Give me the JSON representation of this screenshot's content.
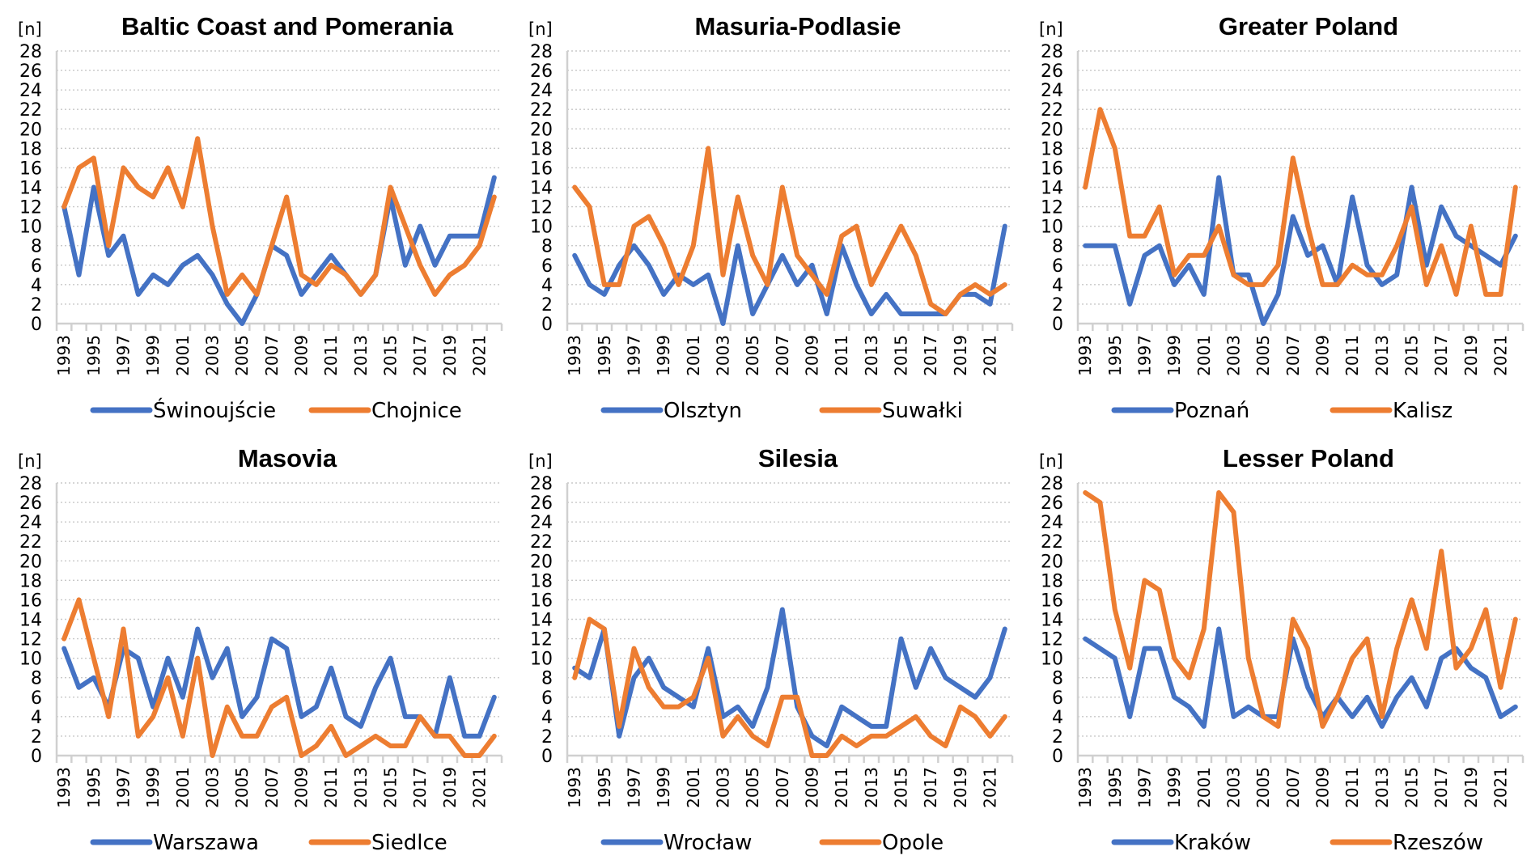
{
  "chart_data": [
    {
      "type": "line",
      "title": "Baltic Coast and Pomerania",
      "ylabel": "[n]",
      "xlabel": "",
      "ylim": [
        0,
        28
      ],
      "yticks": [
        "0",
        "2",
        "4",
        "6",
        "8",
        "10",
        "12",
        "14",
        "16",
        "18",
        "20",
        "22",
        "24",
        "26",
        "28"
      ],
      "x": [
        1993,
        1994,
        1995,
        1996,
        1997,
        1998,
        1999,
        2000,
        2001,
        2002,
        2003,
        2004,
        2005,
        2006,
        2007,
        2008,
        2009,
        2010,
        2011,
        2012,
        2013,
        2014,
        2015,
        2016,
        2017,
        2018,
        2019,
        2020,
        2021,
        2022
      ],
      "xtick_labels": [
        "1993",
        "1995",
        "1997",
        "1999",
        "2001",
        "2003",
        "2005",
        "2007",
        "2009",
        "2011",
        "2013",
        "2015",
        "2017",
        "2019",
        "2021"
      ],
      "grid": true,
      "legend": "bottom",
      "series": [
        {
          "name": "Świnoujście",
          "color": "#4472c4",
          "values": [
            12,
            5,
            14,
            7,
            9,
            3,
            5,
            4,
            6,
            7,
            5,
            2,
            0,
            3,
            8,
            7,
            3,
            5,
            7,
            5,
            3,
            5,
            13,
            6,
            10,
            6,
            9,
            9,
            9,
            15
          ]
        },
        {
          "name": "Chojnice",
          "color": "#ed7d31",
          "values": [
            12,
            16,
            17,
            8,
            16,
            14,
            13,
            16,
            12,
            19,
            10,
            3,
            5,
            3,
            8,
            13,
            5,
            4,
            6,
            5,
            3,
            5,
            14,
            10,
            6,
            3,
            5,
            6,
            8,
            13
          ]
        }
      ]
    },
    {
      "type": "line",
      "title": "Masuria-Podlasie",
      "ylabel": "[n]",
      "xlabel": "",
      "ylim": [
        0,
        28
      ],
      "yticks": [
        "0",
        "2",
        "4",
        "6",
        "8",
        "10",
        "12",
        "14",
        "16",
        "18",
        "20",
        "22",
        "24",
        "26",
        "28"
      ],
      "x": [
        1993,
        1994,
        1995,
        1996,
        1997,
        1998,
        1999,
        2000,
        2001,
        2002,
        2003,
        2004,
        2005,
        2006,
        2007,
        2008,
        2009,
        2010,
        2011,
        2012,
        2013,
        2014,
        2015,
        2016,
        2017,
        2018,
        2019,
        2020,
        2021,
        2022
      ],
      "xtick_labels": [
        "1993",
        "1995",
        "1997",
        "1999",
        "2001",
        "2003",
        "2005",
        "2007",
        "2009",
        "2011",
        "2013",
        "2015",
        "2017",
        "2019",
        "2021"
      ],
      "grid": true,
      "legend": "bottom",
      "series": [
        {
          "name": "Olsztyn",
          "color": "#4472c4",
          "values": [
            7,
            4,
            3,
            6,
            8,
            6,
            3,
            5,
            4,
            5,
            0,
            8,
            1,
            4,
            7,
            4,
            6,
            1,
            8,
            4,
            1,
            3,
            1,
            1,
            1,
            1,
            3,
            3,
            2,
            10
          ]
        },
        {
          "name": "Suwałki",
          "color": "#ed7d31",
          "values": [
            14,
            12,
            4,
            4,
            10,
            11,
            8,
            4,
            8,
            18,
            5,
            13,
            7,
            4,
            14,
            7,
            5,
            3,
            9,
            10,
            4,
            7,
            10,
            7,
            2,
            1,
            3,
            4,
            3,
            4
          ]
        }
      ]
    },
    {
      "type": "line",
      "title": "Greater Poland",
      "ylabel": "[n]",
      "xlabel": "",
      "ylim": [
        0,
        28
      ],
      "yticks": [
        "0",
        "2",
        "4",
        "6",
        "8",
        "10",
        "12",
        "14",
        "16",
        "18",
        "20",
        "22",
        "24",
        "26",
        "28"
      ],
      "x": [
        1993,
        1994,
        1995,
        1996,
        1997,
        1998,
        1999,
        2000,
        2001,
        2002,
        2003,
        2004,
        2005,
        2006,
        2007,
        2008,
        2009,
        2010,
        2011,
        2012,
        2013,
        2014,
        2015,
        2016,
        2017,
        2018,
        2019,
        2020,
        2021,
        2022
      ],
      "xtick_labels": [
        "1993",
        "1995",
        "1997",
        "1999",
        "2001",
        "2003",
        "2005",
        "2007",
        "2009",
        "2011",
        "2013",
        "2015",
        "2017",
        "2019",
        "2021"
      ],
      "grid": true,
      "legend": "bottom",
      "series": [
        {
          "name": "Poznań",
          "color": "#4472c4",
          "values": [
            8,
            8,
            8,
            2,
            7,
            8,
            4,
            6,
            3,
            15,
            5,
            5,
            0,
            3,
            11,
            7,
            8,
            4,
            13,
            6,
            4,
            5,
            14,
            6,
            12,
            9,
            8,
            7,
            6,
            9
          ]
        },
        {
          "name": "Kalisz",
          "color": "#ed7d31",
          "values": [
            14,
            22,
            18,
            9,
            9,
            12,
            5,
            7,
            7,
            10,
            5,
            4,
            4,
            6,
            17,
            10,
            4,
            4,
            6,
            5,
            5,
            8,
            12,
            4,
            8,
            3,
            10,
            3,
            3,
            14
          ]
        }
      ]
    },
    {
      "type": "line",
      "title": "Masovia",
      "ylabel": "[n]",
      "xlabel": "",
      "ylim": [
        0,
        28
      ],
      "yticks": [
        "0",
        "2",
        "4",
        "6",
        "8",
        "10",
        "12",
        "14",
        "16",
        "18",
        "20",
        "22",
        "24",
        "26",
        "28"
      ],
      "x": [
        1993,
        1994,
        1995,
        1996,
        1997,
        1998,
        1999,
        2000,
        2001,
        2002,
        2003,
        2004,
        2005,
        2006,
        2007,
        2008,
        2009,
        2010,
        2011,
        2012,
        2013,
        2014,
        2015,
        2016,
        2017,
        2018,
        2019,
        2020,
        2021,
        2022
      ],
      "xtick_labels": [
        "1993",
        "1995",
        "1997",
        "1999",
        "2001",
        "2003",
        "2005",
        "2007",
        "2009",
        "2011",
        "2013",
        "2015",
        "2017",
        "2019",
        "2021"
      ],
      "grid": true,
      "legend": "bottom",
      "series": [
        {
          "name": "Warszawa",
          "color": "#4472c4",
          "values": [
            11,
            7,
            8,
            5,
            11,
            10,
            5,
            10,
            6,
            13,
            8,
            11,
            4,
            6,
            12,
            11,
            4,
            5,
            9,
            4,
            3,
            7,
            10,
            4,
            4,
            2,
            8,
            2,
            2,
            6
          ]
        },
        {
          "name": "Siedlce",
          "color": "#ed7d31",
          "values": [
            12,
            16,
            10,
            4,
            13,
            2,
            4,
            8,
            2,
            10,
            0,
            5,
            2,
            2,
            5,
            6,
            0,
            1,
            3,
            0,
            1,
            2,
            1,
            1,
            4,
            2,
            2,
            0,
            0,
            2
          ]
        }
      ]
    },
    {
      "type": "line",
      "title": "Silesia",
      "ylabel": "[n]",
      "xlabel": "",
      "ylim": [
        0,
        28
      ],
      "yticks": [
        "0",
        "2",
        "4",
        "6",
        "8",
        "10",
        "12",
        "14",
        "16",
        "18",
        "20",
        "22",
        "24",
        "26",
        "28"
      ],
      "x": [
        1993,
        1994,
        1995,
        1996,
        1997,
        1998,
        1999,
        2000,
        2001,
        2002,
        2003,
        2004,
        2005,
        2006,
        2007,
        2008,
        2009,
        2010,
        2011,
        2012,
        2013,
        2014,
        2015,
        2016,
        2017,
        2018,
        2019,
        2020,
        2021,
        2022
      ],
      "xtick_labels": [
        "1993",
        "1995",
        "1997",
        "1999",
        "2001",
        "2003",
        "2005",
        "2007",
        "2009",
        "2011",
        "2013",
        "2015",
        "2017",
        "2019",
        "2021"
      ],
      "grid": true,
      "legend": "bottom",
      "series": [
        {
          "name": "Wrocław",
          "color": "#4472c4",
          "values": [
            9,
            8,
            13,
            2,
            8,
            10,
            7,
            6,
            5,
            11,
            4,
            5,
            3,
            7,
            15,
            5,
            2,
            1,
            5,
            4,
            3,
            3,
            12,
            7,
            11,
            8,
            7,
            6,
            8,
            13
          ]
        },
        {
          "name": "Opole",
          "color": "#ed7d31",
          "values": [
            8,
            14,
            13,
            3,
            11,
            7,
            5,
            5,
            6,
            10,
            2,
            4,
            2,
            1,
            6,
            6,
            0,
            0,
            2,
            1,
            2,
            2,
            3,
            4,
            2,
            1,
            5,
            4,
            2,
            4
          ]
        }
      ]
    },
    {
      "type": "line",
      "title": "Lesser Poland",
      "ylabel": "[n]",
      "xlabel": "",
      "ylim": [
        0,
        28
      ],
      "yticks": [
        "0",
        "2",
        "4",
        "6",
        "8",
        "10",
        "12",
        "14",
        "16",
        "18",
        "20",
        "22",
        "24",
        "26",
        "28"
      ],
      "x": [
        1993,
        1994,
        1995,
        1996,
        1997,
        1998,
        1999,
        2000,
        2001,
        2002,
        2003,
        2004,
        2005,
        2006,
        2007,
        2008,
        2009,
        2010,
        2011,
        2012,
        2013,
        2014,
        2015,
        2016,
        2017,
        2018,
        2019,
        2020,
        2021,
        2022
      ],
      "xtick_labels": [
        "1993",
        "1995",
        "1997",
        "1999",
        "2001",
        "2003",
        "2005",
        "2007",
        "2009",
        "2011",
        "2013",
        "2015",
        "2017",
        "2019",
        "2021"
      ],
      "grid": true,
      "legend": "bottom",
      "series": [
        {
          "name": "Kraków",
          "color": "#4472c4",
          "values": [
            12,
            11,
            10,
            4,
            11,
            11,
            6,
            5,
            3,
            13,
            4,
            5,
            4,
            4,
            12,
            7,
            4,
            6,
            4,
            6,
            3,
            6,
            8,
            5,
            10,
            11,
            9,
            8,
            4,
            5
          ]
        },
        {
          "name": "Rzeszów",
          "color": "#ed7d31",
          "values": [
            27,
            26,
            15,
            9,
            18,
            17,
            10,
            8,
            13,
            27,
            25,
            10,
            4,
            3,
            14,
            11,
            3,
            6,
            10,
            12,
            4,
            11,
            16,
            11,
            21,
            9,
            11,
            15,
            7,
            14
          ]
        }
      ]
    }
  ]
}
